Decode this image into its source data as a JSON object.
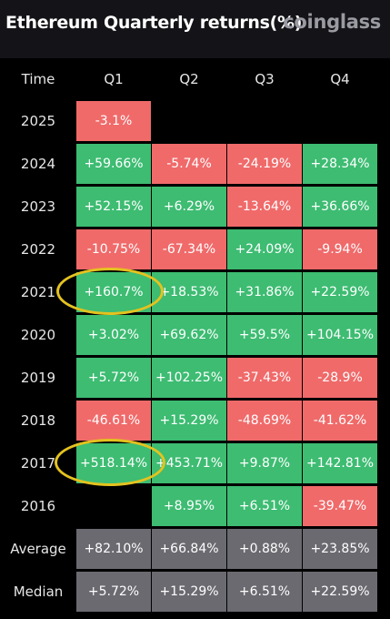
{
  "header": {
    "title": "Ethereum Quarterly returns(%)",
    "brand": "coinglass"
  },
  "table": {
    "columns": [
      "Time",
      "Q1",
      "Q2",
      "Q3",
      "Q4"
    ],
    "rows": [
      {
        "year": "2025",
        "q": [
          "-3.1%",
          "",
          "",
          ""
        ],
        "s": [
          "neg",
          "",
          "",
          ""
        ]
      },
      {
        "year": "2024",
        "q": [
          "+59.66%",
          "-5.74%",
          "-24.19%",
          "+28.34%"
        ],
        "s": [
          "pos",
          "neg",
          "neg",
          "pos"
        ]
      },
      {
        "year": "2023",
        "q": [
          "+52.15%",
          "+6.29%",
          "-13.64%",
          "+36.66%"
        ],
        "s": [
          "pos",
          "pos",
          "neg",
          "pos"
        ]
      },
      {
        "year": "2022",
        "q": [
          "-10.75%",
          "-67.34%",
          "+24.09%",
          "-9.94%"
        ],
        "s": [
          "neg",
          "neg",
          "pos",
          "neg"
        ]
      },
      {
        "year": "2021",
        "q": [
          "+160.7%",
          "+18.53%",
          "+31.86%",
          "+22.59%"
        ],
        "s": [
          "pos",
          "pos",
          "pos",
          "pos"
        ]
      },
      {
        "year": "2020",
        "q": [
          "+3.02%",
          "+69.62%",
          "+59.5%",
          "+104.15%"
        ],
        "s": [
          "pos",
          "pos",
          "pos",
          "pos"
        ]
      },
      {
        "year": "2019",
        "q": [
          "+5.72%",
          "+102.25%",
          "-37.43%",
          "-28.9%"
        ],
        "s": [
          "pos",
          "pos",
          "neg",
          "neg"
        ]
      },
      {
        "year": "2018",
        "q": [
          "-46.61%",
          "+15.29%",
          "-48.69%",
          "-41.62%"
        ],
        "s": [
          "neg",
          "pos",
          "neg",
          "neg"
        ]
      },
      {
        "year": "2017",
        "q": [
          "+518.14%",
          "+453.71%",
          "+9.87%",
          "+142.81%"
        ],
        "s": [
          "pos",
          "pos",
          "pos",
          "pos"
        ]
      },
      {
        "year": "2016",
        "q": [
          "",
          "+8.95%",
          "+6.51%",
          "-39.47%"
        ],
        "s": [
          "",
          "pos",
          "pos",
          "neg"
        ]
      }
    ],
    "stats": [
      {
        "label": "Average",
        "q": [
          "+82.10%",
          "+66.84%",
          "+0.88%",
          "+23.85%"
        ]
      },
      {
        "label": "Median",
        "q": [
          "+5.72%",
          "+15.29%",
          "+6.51%",
          "+22.59%"
        ]
      }
    ]
  },
  "highlights": [
    "2021 Q1",
    "2017 Q1"
  ],
  "colors": {
    "positive": "#3dbc72",
    "negative": "#f06a6a",
    "stat_cell": "#6a6a70",
    "highlight_ring": "#e4c21f",
    "background": "#000000"
  }
}
